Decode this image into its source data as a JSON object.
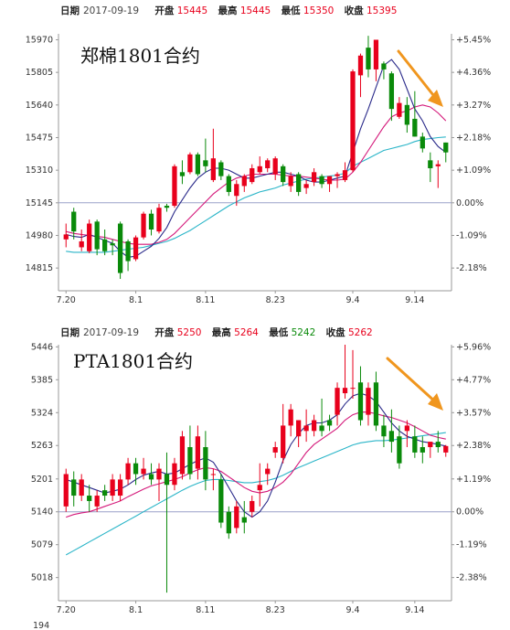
{
  "chart_data": [
    {
      "type": "candlestick",
      "title": "郑棉1801合约",
      "info": {
        "date_label": "日期",
        "date": "2017-09-19",
        "open_label": "开盘",
        "open": "15445",
        "high_label": "最高",
        "high": "15445",
        "low_label": "最低",
        "low": "15350",
        "close_label": "收盘",
        "close": "15395"
      },
      "y_ticks": [
        "15970",
        "15805",
        "15640",
        "15475",
        "15310",
        "15145",
        "14980",
        "14815"
      ],
      "y_tick_values": [
        15970,
        15805,
        15640,
        15475,
        15310,
        15145,
        14980,
        14815
      ],
      "pct_ticks": [
        "+5.45%",
        "+4.36%",
        "+3.27%",
        "+2.18%",
        "+1.09%",
        "0.00%",
        "-1.09%",
        "-2.18%"
      ],
      "x_ticks": [
        "7.20",
        "8.1",
        "8.11",
        "8.23",
        "9.4",
        "9.14"
      ],
      "x_tick_index": [
        0,
        9,
        18,
        27,
        37,
        45
      ],
      "ylim": [
        14700,
        16000
      ],
      "base": 15145,
      "cut_label": "",
      "colors": {
        "up": "#e8001c",
        "down": "#0a8a0a",
        "ma5": "#2a2a8a",
        "ma10": "#d4187a",
        "ma20": "#2ab5c8",
        "base": "#9aa0c8",
        "arrow": "#f0961e"
      },
      "candles": [
        {
          "o": 14960,
          "h": 15040,
          "l": 14920,
          "c": 14985
        },
        {
          "o": 15100,
          "h": 15120,
          "l": 14960,
          "c": 15000
        },
        {
          "o": 14920,
          "h": 15010,
          "l": 14900,
          "c": 14950
        },
        {
          "o": 14900,
          "h": 15060,
          "l": 14890,
          "c": 15040
        },
        {
          "o": 15050,
          "h": 15060,
          "l": 14880,
          "c": 14910
        },
        {
          "o": 14960,
          "h": 15010,
          "l": 14880,
          "c": 14900
        },
        {
          "o": 14940,
          "h": 14960,
          "l": 14880,
          "c": 14930
        },
        {
          "o": 15040,
          "h": 15050,
          "l": 14760,
          "c": 14790
        },
        {
          "o": 14950,
          "h": 14960,
          "l": 14800,
          "c": 14850
        },
        {
          "o": 14860,
          "h": 14980,
          "l": 14850,
          "c": 14970
        },
        {
          "o": 14970,
          "h": 15100,
          "l": 14960,
          "c": 15090
        },
        {
          "o": 15090,
          "h": 15110,
          "l": 14980,
          "c": 15010
        },
        {
          "o": 15000,
          "h": 15140,
          "l": 14990,
          "c": 15120
        },
        {
          "o": 15130,
          "h": 15140,
          "l": 15100,
          "c": 15120
        },
        {
          "o": 15130,
          "h": 15340,
          "l": 15120,
          "c": 15330
        },
        {
          "o": 15300,
          "h": 15360,
          "l": 15240,
          "c": 15280
        },
        {
          "o": 15300,
          "h": 15400,
          "l": 15290,
          "c": 15390
        },
        {
          "o": 15390,
          "h": 15400,
          "l": 15280,
          "c": 15290
        },
        {
          "o": 15360,
          "h": 15470,
          "l": 15300,
          "c": 15330
        },
        {
          "o": 15260,
          "h": 15520,
          "l": 15250,
          "c": 15370
        },
        {
          "o": 15350,
          "h": 15360,
          "l": 15260,
          "c": 15280
        },
        {
          "o": 15280,
          "h": 15290,
          "l": 15180,
          "c": 15200
        },
        {
          "o": 15180,
          "h": 15260,
          "l": 15130,
          "c": 15240
        },
        {
          "o": 15230,
          "h": 15290,
          "l": 15200,
          "c": 15280
        },
        {
          "o": 15250,
          "h": 15340,
          "l": 15240,
          "c": 15320
        },
        {
          "o": 15300,
          "h": 15380,
          "l": 15290,
          "c": 15330
        },
        {
          "o": 15320,
          "h": 15370,
          "l": 15300,
          "c": 15360
        },
        {
          "o": 15290,
          "h": 15380,
          "l": 15260,
          "c": 15370
        },
        {
          "o": 15330,
          "h": 15340,
          "l": 15230,
          "c": 15250
        },
        {
          "o": 15230,
          "h": 15300,
          "l": 15200,
          "c": 15280
        },
        {
          "o": 15290,
          "h": 15300,
          "l": 15180,
          "c": 15200
        },
        {
          "o": 15220,
          "h": 15260,
          "l": 15190,
          "c": 15240
        },
        {
          "o": 15250,
          "h": 15320,
          "l": 15230,
          "c": 15300
        },
        {
          "o": 15280,
          "h": 15290,
          "l": 15220,
          "c": 15240
        },
        {
          "o": 15240,
          "h": 15270,
          "l": 15200,
          "c": 15280
        },
        {
          "o": 15280,
          "h": 15300,
          "l": 15220,
          "c": 15290
        },
        {
          "o": 15260,
          "h": 15350,
          "l": 15250,
          "c": 15310
        },
        {
          "o": 15310,
          "h": 15820,
          "l": 15300,
          "c": 15810
        },
        {
          "o": 15790,
          "h": 15900,
          "l": 15680,
          "c": 15890
        },
        {
          "o": 15930,
          "h": 15990,
          "l": 15780,
          "c": 15820
        },
        {
          "o": 15820,
          "h": 15970,
          "l": 15760,
          "c": 15970
        },
        {
          "o": 15850,
          "h": 15860,
          "l": 15770,
          "c": 15820
        },
        {
          "o": 15800,
          "h": 15810,
          "l": 15560,
          "c": 15620
        },
        {
          "o": 15580,
          "h": 15680,
          "l": 15570,
          "c": 15650
        },
        {
          "o": 15640,
          "h": 15680,
          "l": 15500,
          "c": 15540
        },
        {
          "o": 15570,
          "h": 15710,
          "l": 15480,
          "c": 15480
        },
        {
          "o": 15480,
          "h": 15500,
          "l": 15400,
          "c": 15420
        },
        {
          "o": 15360,
          "h": 15400,
          "l": 15250,
          "c": 15320
        },
        {
          "o": 15330,
          "h": 15360,
          "l": 15220,
          "c": 15340
        },
        {
          "o": 15450,
          "h": 15450,
          "l": 15350,
          "c": 15400
        }
      ],
      "ma5": [
        14985,
        14975,
        14970,
        14985,
        14970,
        14955,
        14940,
        14900,
        14870,
        14875,
        14900,
        14925,
        14965,
        15020,
        15100,
        15160,
        15220,
        15270,
        15300,
        15320,
        15320,
        15310,
        15290,
        15270,
        15270,
        15280,
        15290,
        15300,
        15300,
        15290,
        15280,
        15260,
        15250,
        15250,
        15260,
        15270,
        15280,
        15400,
        15520,
        15620,
        15730,
        15840,
        15870,
        15820,
        15720,
        15620,
        15560,
        15480,
        15430,
        15400
      ],
      "ma10": [
        15000,
        14990,
        14985,
        14980,
        14975,
        14970,
        14960,
        14950,
        14940,
        14935,
        14935,
        14935,
        14945,
        14960,
        14990,
        15030,
        15070,
        15110,
        15150,
        15190,
        15220,
        15250,
        15270,
        15280,
        15290,
        15290,
        15290,
        15290,
        15285,
        15280,
        15280,
        15275,
        15270,
        15265,
        15260,
        15260,
        15265,
        15300,
        15350,
        15410,
        15470,
        15530,
        15580,
        15600,
        15610,
        15630,
        15640,
        15630,
        15600,
        15560
      ],
      "ma20": [
        14900,
        14895,
        14895,
        14895,
        14895,
        14895,
        14900,
        14905,
        14910,
        14915,
        14920,
        14930,
        14940,
        14950,
        14965,
        14985,
        15005,
        15030,
        15055,
        15080,
        15105,
        15130,
        15150,
        15170,
        15185,
        15200,
        15210,
        15220,
        15235,
        15245,
        15255,
        15265,
        15270,
        15275,
        15280,
        15285,
        15295,
        15330,
        15350,
        15370,
        15390,
        15410,
        15420,
        15430,
        15440,
        15455,
        15465,
        15470,
        15475,
        15478
      ]
    },
    {
      "type": "candlestick",
      "title": "PTA1801合约",
      "info": {
        "date_label": "日期",
        "date": "2017-09-19",
        "open_label": "开盘",
        "open": "5250",
        "high_label": "最高",
        "high": "5264",
        "low_label": "最低",
        "low": "5242",
        "close_label": "收盘",
        "close": "5262"
      },
      "y_ticks": [
        "5446",
        "5385",
        "5324",
        "5263",
        "5201",
        "5140",
        "5079",
        "5018"
      ],
      "y_tick_values": [
        5446,
        5385,
        5324,
        5263,
        5201,
        5140,
        5079,
        5018
      ],
      "pct_ticks": [
        "+5.96%",
        "+4.77%",
        "+3.57%",
        "+2.38%",
        "+1.19%",
        "0.00%",
        "-1.19%",
        "-2.38%"
      ],
      "x_ticks": [
        "7.20",
        "8.1",
        "8.11",
        "8.23",
        "9.4",
        "9.14"
      ],
      "x_tick_index": [
        0,
        9,
        18,
        27,
        37,
        45
      ],
      "ylim": [
        4975,
        5450
      ],
      "base": 5140,
      "cut_label": "194",
      "colors": {
        "up": "#e8001c",
        "down": "#0a8a0a",
        "ma5": "#2a2a8a",
        "ma10": "#d4187a",
        "ma20": "#2ab5c8",
        "base": "#9aa0c8",
        "arrow": "#f0961e"
      },
      "candles": [
        {
          "o": 5150,
          "h": 5220,
          "l": 5140,
          "c": 5210
        },
        {
          "o": 5200,
          "h": 5215,
          "l": 5150,
          "c": 5170
        },
        {
          "o": 5170,
          "h": 5210,
          "l": 5160,
          "c": 5200
        },
        {
          "o": 5170,
          "h": 5190,
          "l": 5140,
          "c": 5160
        },
        {
          "o": 5150,
          "h": 5180,
          "l": 5140,
          "c": 5170
        },
        {
          "o": 5180,
          "h": 5190,
          "l": 5160,
          "c": 5170
        },
        {
          "o": 5170,
          "h": 5210,
          "l": 5160,
          "c": 5200
        },
        {
          "o": 5170,
          "h": 5210,
          "l": 5160,
          "c": 5200
        },
        {
          "o": 5200,
          "h": 5240,
          "l": 5190,
          "c": 5230
        },
        {
          "o": 5230,
          "h": 5240,
          "l": 5190,
          "c": 5210
        },
        {
          "o": 5210,
          "h": 5240,
          "l": 5200,
          "c": 5220
        },
        {
          "o": 5210,
          "h": 5230,
          "l": 5190,
          "c": 5200
        },
        {
          "o": 5200,
          "h": 5230,
          "l": 5160,
          "c": 5220
        },
        {
          "o": 5210,
          "h": 5250,
          "l": 4990,
          "c": 5190
        },
        {
          "o": 5190,
          "h": 5240,
          "l": 5180,
          "c": 5230
        },
        {
          "o": 5210,
          "h": 5290,
          "l": 5200,
          "c": 5280
        },
        {
          "o": 5260,
          "h": 5300,
          "l": 5200,
          "c": 5210
        },
        {
          "o": 5220,
          "h": 5300,
          "l": 5200,
          "c": 5280
        },
        {
          "o": 5260,
          "h": 5290,
          "l": 5180,
          "c": 5200
        },
        {
          "o": 5210,
          "h": 5220,
          "l": 5180,
          "c": 5210
        },
        {
          "o": 5200,
          "h": 5210,
          "l": 5110,
          "c": 5120
        },
        {
          "o": 5140,
          "h": 5150,
          "l": 5090,
          "c": 5100
        },
        {
          "o": 5110,
          "h": 5160,
          "l": 5100,
          "c": 5150
        },
        {
          "o": 5130,
          "h": 5160,
          "l": 5100,
          "c": 5120
        },
        {
          "o": 5140,
          "h": 5170,
          "l": 5130,
          "c": 5160
        },
        {
          "o": 5180,
          "h": 5230,
          "l": 5150,
          "c": 5190
        },
        {
          "o": 5210,
          "h": 5230,
          "l": 5190,
          "c": 5220
        },
        {
          "o": 5250,
          "h": 5270,
          "l": 5240,
          "c": 5260
        },
        {
          "o": 5240,
          "h": 5340,
          "l": 5230,
          "c": 5300
        },
        {
          "o": 5300,
          "h": 5340,
          "l": 5280,
          "c": 5330
        },
        {
          "o": 5280,
          "h": 5310,
          "l": 5260,
          "c": 5310
        },
        {
          "o": 5290,
          "h": 5330,
          "l": 5270,
          "c": 5300
        },
        {
          "o": 5290,
          "h": 5320,
          "l": 5280,
          "c": 5310
        },
        {
          "o": 5300,
          "h": 5350,
          "l": 5280,
          "c": 5290
        },
        {
          "o": 5310,
          "h": 5320,
          "l": 5290,
          "c": 5300
        },
        {
          "o": 5320,
          "h": 5380,
          "l": 5300,
          "c": 5370
        },
        {
          "o": 5360,
          "h": 5450,
          "l": 5350,
          "c": 5370
        },
        {
          "o": 5370,
          "h": 5440,
          "l": 5350,
          "c": 5370
        },
        {
          "o": 5380,
          "h": 5410,
          "l": 5300,
          "c": 5310
        },
        {
          "o": 5320,
          "h": 5380,
          "l": 5300,
          "c": 5370
        },
        {
          "o": 5380,
          "h": 5400,
          "l": 5290,
          "c": 5300
        },
        {
          "o": 5300,
          "h": 5320,
          "l": 5260,
          "c": 5280
        },
        {
          "o": 5290,
          "h": 5330,
          "l": 5250,
          "c": 5270
        },
        {
          "o": 5280,
          "h": 5300,
          "l": 5220,
          "c": 5230
        },
        {
          "o": 5290,
          "h": 5310,
          "l": 5260,
          "c": 5300
        },
        {
          "o": 5280,
          "h": 5300,
          "l": 5240,
          "c": 5250
        },
        {
          "o": 5260,
          "h": 5280,
          "l": 5230,
          "c": 5250
        },
        {
          "o": 5260,
          "h": 5270,
          "l": 5240,
          "c": 5270
        },
        {
          "o": 5270,
          "h": 5290,
          "l": 5250,
          "c": 5260
        },
        {
          "o": 5250,
          "h": 5264,
          "l": 5242,
          "c": 5262
        }
      ],
      "ma5": [
        5200,
        5195,
        5190,
        5185,
        5180,
        5175,
        5178,
        5182,
        5190,
        5200,
        5208,
        5212,
        5215,
        5210,
        5212,
        5220,
        5228,
        5235,
        5240,
        5232,
        5210,
        5185,
        5160,
        5140,
        5130,
        5140,
        5160,
        5195,
        5235,
        5265,
        5285,
        5300,
        5305,
        5305,
        5310,
        5320,
        5340,
        5355,
        5360,
        5355,
        5345,
        5325,
        5305,
        5290,
        5280,
        5275,
        5270,
        5268,
        5265,
        5262
      ],
      "ma10": [
        5130,
        5135,
        5138,
        5140,
        5145,
        5150,
        5155,
        5160,
        5168,
        5175,
        5182,
        5188,
        5192,
        5196,
        5200,
        5205,
        5212,
        5218,
        5222,
        5220,
        5215,
        5205,
        5195,
        5185,
        5178,
        5175,
        5178,
        5185,
        5195,
        5210,
        5230,
        5250,
        5265,
        5275,
        5285,
        5295,
        5310,
        5320,
        5325,
        5325,
        5322,
        5318,
        5315,
        5310,
        5305,
        5298,
        5290,
        5282,
        5278,
        5275
      ],
      "ma20": [
        5060,
        5068,
        5076,
        5084,
        5092,
        5100,
        5108,
        5116,
        5124,
        5132,
        5140,
        5148,
        5156,
        5164,
        5172,
        5180,
        5187,
        5193,
        5198,
        5200,
        5200,
        5198,
        5196,
        5194,
        5194,
        5196,
        5198,
        5202,
        5208,
        5215,
        5222,
        5228,
        5234,
        5240,
        5246,
        5252,
        5258,
        5264,
        5268,
        5270,
        5272,
        5272,
        5273,
        5275,
        5277,
        5279,
        5281,
        5283,
        5285,
        5287
      ]
    }
  ]
}
